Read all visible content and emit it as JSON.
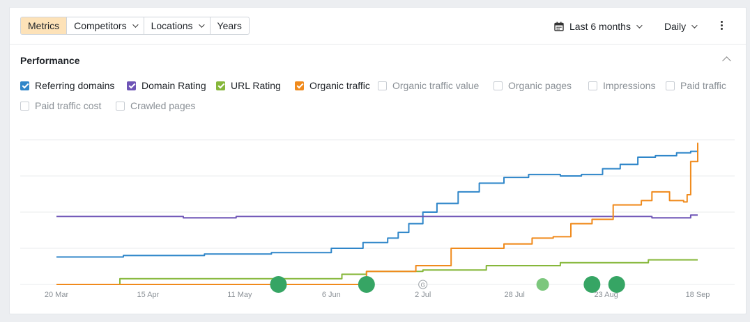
{
  "toolbar": {
    "tabs": [
      {
        "label": "Metrics",
        "active": true
      },
      {
        "label": "Competitors",
        "dropdown": true
      },
      {
        "label": "Locations",
        "dropdown": true
      },
      {
        "label": "Years"
      }
    ],
    "range_label": "Last 6 months",
    "interval_label": "Daily",
    "calendar_icon": "calendar-icon",
    "more_icon": "kebab-menu-icon"
  },
  "performance": {
    "title": "Performance",
    "metrics": [
      {
        "label": "Referring domains",
        "checked": true,
        "color": "#2f86c9"
      },
      {
        "label": "Domain Rating",
        "checked": true,
        "color": "#6e54b6"
      },
      {
        "label": "URL Rating",
        "checked": true,
        "color": "#86b73a"
      },
      {
        "label": "Organic traffic",
        "checked": true,
        "color": "#f08a1c"
      },
      {
        "label": "Organic traffic value",
        "checked": false
      },
      {
        "label": "Organic pages",
        "checked": false
      },
      {
        "label": "Impressions",
        "checked": false
      },
      {
        "label": "Paid traffic",
        "checked": false
      },
      {
        "label": "Paid traffic cost",
        "checked": false
      },
      {
        "label": "Crawled pages",
        "checked": false
      }
    ]
  },
  "chart_data": {
    "type": "line",
    "x_tick_labels": [
      "20 Mar",
      "15 Apr",
      "11 May",
      "6 Jun",
      "2 Jul",
      "28 Jul",
      "23 Aug",
      "18 Sep"
    ],
    "x_range": [
      "2024-03-20",
      "2024-09-18"
    ],
    "y_range": [
      0,
      100
    ],
    "grid": true,
    "series": [
      {
        "name": "Referring domains",
        "color": "#2f86c9",
        "x": [
          "2024-03-20",
          "2024-04-08",
          "2024-05-01",
          "2024-05-20",
          "2024-06-06",
          "2024-06-15",
          "2024-06-22",
          "2024-06-25",
          "2024-06-28",
          "2024-07-02",
          "2024-07-06",
          "2024-07-12",
          "2024-07-18",
          "2024-07-25",
          "2024-08-01",
          "2024-08-10",
          "2024-08-16",
          "2024-08-22",
          "2024-08-27",
          "2024-09-01",
          "2024-09-06",
          "2024-09-12",
          "2024-09-16",
          "2024-09-18"
        ],
        "values": [
          19,
          20,
          21,
          22,
          25,
          29,
          32,
          36,
          42,
          50,
          56,
          64,
          70,
          74,
          76,
          75,
          76,
          80,
          83,
          88,
          89,
          91,
          92,
          91
        ]
      },
      {
        "name": "Domain Rating",
        "color": "#6e54b6",
        "x": [
          "2024-03-20",
          "2024-04-05",
          "2024-04-25",
          "2024-05-10",
          "2024-06-10",
          "2024-07-10",
          "2024-08-10",
          "2024-09-03",
          "2024-09-05",
          "2024-09-16",
          "2024-09-18"
        ],
        "values": [
          47,
          47,
          46,
          47,
          47,
          47,
          47,
          47,
          46,
          48,
          48
        ]
      },
      {
        "name": "URL Rating",
        "color": "#86b73a",
        "x": [
          "2024-03-20",
          "2024-04-06",
          "2024-04-07",
          "2024-06-01",
          "2024-06-09",
          "2024-06-16",
          "2024-07-02",
          "2024-07-20",
          "2024-08-10",
          "2024-09-04",
          "2024-09-18"
        ],
        "values": [
          0,
          0,
          4,
          4,
          7,
          9,
          10,
          13,
          15,
          17,
          17
        ]
      },
      {
        "name": "Organic traffic",
        "color": "#f08a1c",
        "x": [
          "2024-03-20",
          "2024-06-15",
          "2024-06-16",
          "2024-06-29",
          "2024-06-30",
          "2024-07-09",
          "2024-07-10",
          "2024-07-18",
          "2024-07-25",
          "2024-08-02",
          "2024-08-08",
          "2024-08-13",
          "2024-08-19",
          "2024-08-25",
          "2024-09-02",
          "2024-09-05",
          "2024-09-10",
          "2024-09-14",
          "2024-09-15",
          "2024-09-16",
          "2024-09-18"
        ],
        "values": [
          0,
          0,
          9,
          9,
          13,
          13,
          25,
          25,
          28,
          32,
          33,
          42,
          45,
          55,
          58,
          64,
          58,
          57,
          62,
          85,
          98
        ]
      }
    ],
    "annotations": [
      {
        "x": "2024-05-22",
        "type": "event",
        "color": "#36a564"
      },
      {
        "x": "2024-06-16",
        "type": "event",
        "color": "#36a564"
      },
      {
        "x": "2024-07-02",
        "type": "google-update",
        "label": "G"
      },
      {
        "x": "2024-08-05",
        "type": "event",
        "color": "#7cc77d"
      },
      {
        "x": "2024-08-19",
        "type": "event",
        "color": "#36a564"
      },
      {
        "x": "2024-08-26",
        "type": "event",
        "color": "#36a564"
      }
    ]
  }
}
